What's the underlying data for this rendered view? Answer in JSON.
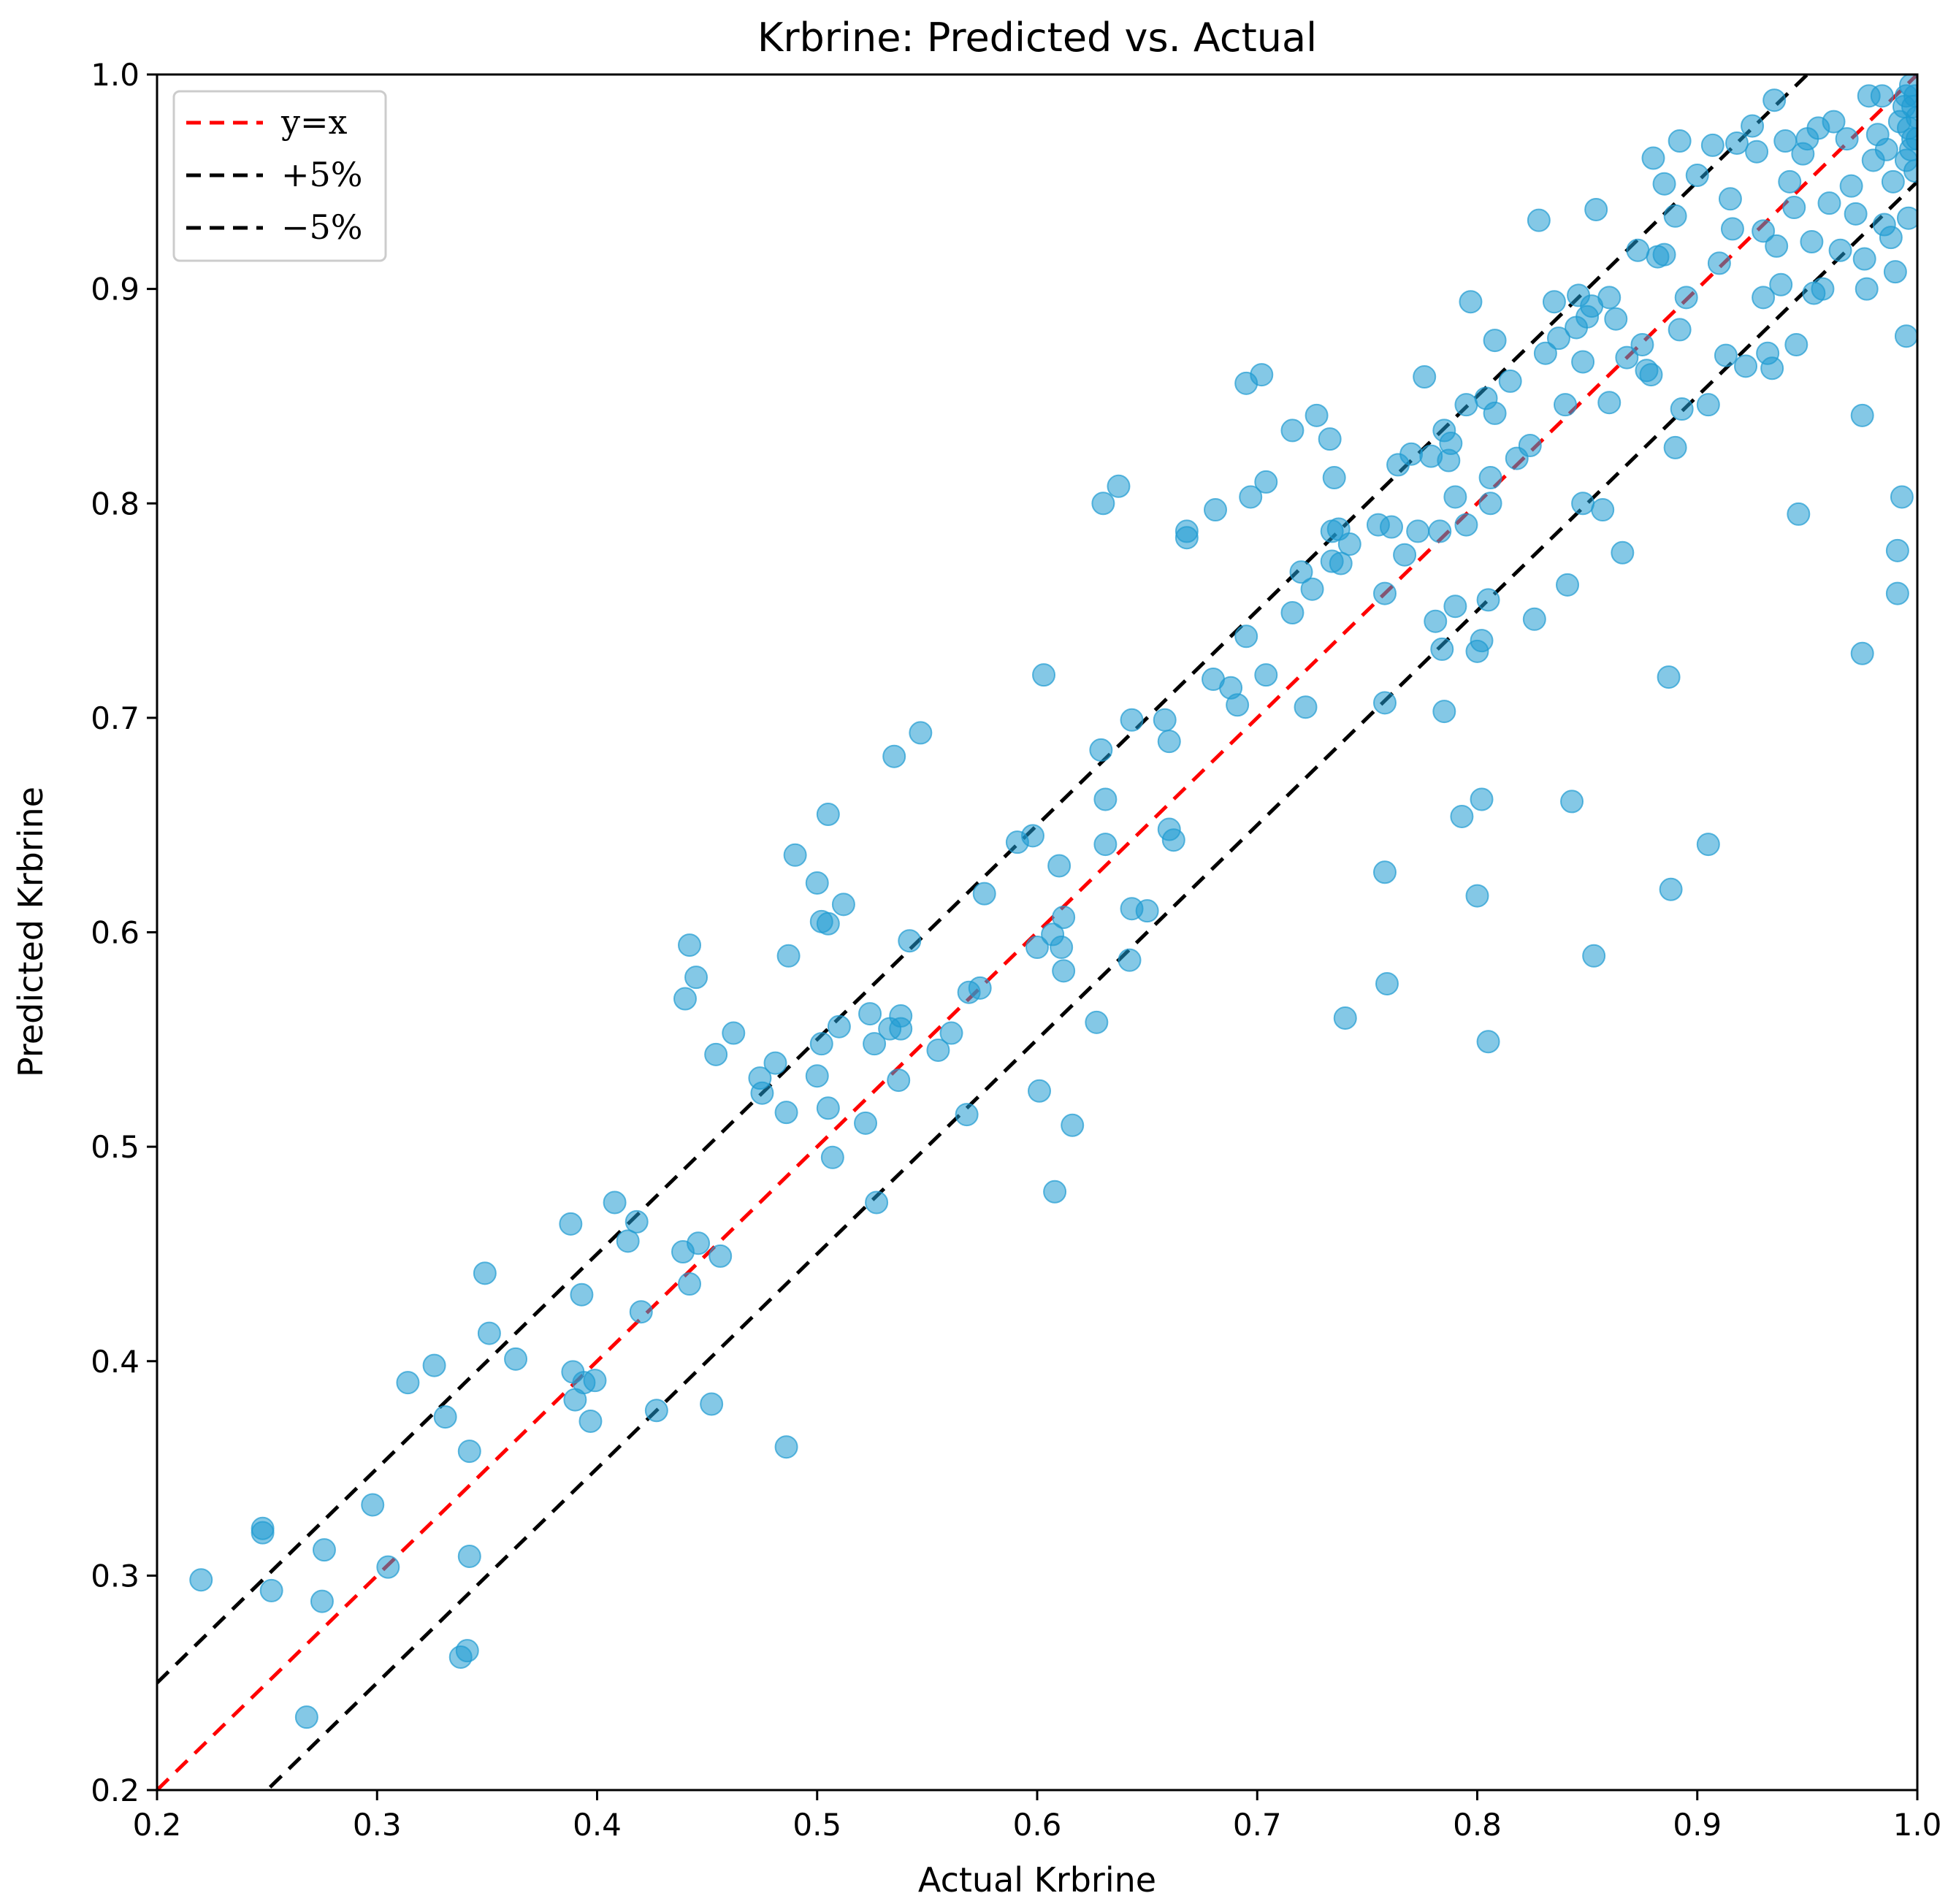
{
  "chart_data": {
    "type": "scatter",
    "title": "Krbrine: Predicted vs. Actual",
    "xlabel": "Actual Krbrine",
    "ylabel": "Predicted Krbrine",
    "xlim": [
      0.2,
      1.0
    ],
    "ylim": [
      0.2,
      1.0
    ],
    "xticks": [
      "0.2",
      "0.3",
      "0.4",
      "0.5",
      "0.6",
      "0.7",
      "0.8",
      "0.9",
      "1.0"
    ],
    "yticks": [
      "0.2",
      "0.3",
      "0.4",
      "0.5",
      "0.6",
      "0.7",
      "0.8",
      "0.9",
      "1.0"
    ],
    "grid": false,
    "legend_position": "top-left",
    "point_color": "#1f9bd1",
    "lines": [
      {
        "name": "y=x",
        "color": "#ff0000",
        "offset": 0.0,
        "dashed": true
      },
      {
        "name": "+5%",
        "color": "#000000",
        "offset": 0.05,
        "dashed": true
      },
      {
        "name": "−5%",
        "color": "#000000",
        "offset": -0.05,
        "dashed": true
      }
    ],
    "points": [
      [
        0.22,
        0.298
      ],
      [
        0.248,
        0.32
      ],
      [
        0.248,
        0.322
      ],
      [
        0.252,
        0.293
      ],
      [
        0.275,
        0.288
      ],
      [
        0.276,
        0.312
      ],
      [
        0.268,
        0.234
      ],
      [
        0.298,
        0.333
      ],
      [
        0.305,
        0.304
      ],
      [
        0.314,
        0.39
      ],
      [
        0.326,
        0.398
      ],
      [
        0.331,
        0.374
      ],
      [
        0.342,
        0.358
      ],
      [
        0.342,
        0.309
      ],
      [
        0.338,
        0.262
      ],
      [
        0.341,
        0.265
      ],
      [
        0.349,
        0.441
      ],
      [
        0.351,
        0.413
      ],
      [
        0.363,
        0.401
      ],
      [
        0.388,
        0.464
      ],
      [
        0.389,
        0.395
      ],
      [
        0.39,
        0.382
      ],
      [
        0.393,
        0.431
      ],
      [
        0.394,
        0.39
      ],
      [
        0.397,
        0.372
      ],
      [
        0.399,
        0.391
      ],
      [
        0.408,
        0.474
      ],
      [
        0.414,
        0.456
      ],
      [
        0.418,
        0.465
      ],
      [
        0.42,
        0.423
      ],
      [
        0.427,
        0.377
      ],
      [
        0.439,
        0.451
      ],
      [
        0.44,
        0.569
      ],
      [
        0.442,
        0.436
      ],
      [
        0.442,
        0.594
      ],
      [
        0.445,
        0.579
      ],
      [
        0.446,
        0.455
      ],
      [
        0.452,
        0.38
      ],
      [
        0.454,
        0.543
      ],
      [
        0.456,
        0.449
      ],
      [
        0.462,
        0.553
      ],
      [
        0.474,
        0.532
      ],
      [
        0.475,
        0.525
      ],
      [
        0.481,
        0.539
      ],
      [
        0.486,
        0.36
      ],
      [
        0.486,
        0.516
      ],
      [
        0.487,
        0.589
      ],
      [
        0.49,
        0.636
      ],
      [
        0.5,
        0.623
      ],
      [
        0.5,
        0.533
      ],
      [
        0.502,
        0.605
      ],
      [
        0.502,
        0.548
      ],
      [
        0.505,
        0.604
      ],
      [
        0.505,
        0.655
      ],
      [
        0.505,
        0.518
      ],
      [
        0.507,
        0.495
      ],
      [
        0.51,
        0.556
      ],
      [
        0.512,
        0.613
      ],
      [
        0.522,
        0.511
      ],
      [
        0.524,
        0.562
      ],
      [
        0.526,
        0.548
      ],
      [
        0.527,
        0.474
      ],
      [
        0.533,
        0.555
      ],
      [
        0.535,
        0.682
      ],
      [
        0.537,
        0.531
      ],
      [
        0.538,
        0.561
      ],
      [
        0.538,
        0.555
      ],
      [
        0.542,
        0.596
      ],
      [
        0.547,
        0.693
      ],
      [
        0.555,
        0.545
      ],
      [
        0.561,
        0.553
      ],
      [
        0.568,
        0.515
      ],
      [
        0.569,
        0.572
      ],
      [
        0.574,
        0.574
      ],
      [
        0.576,
        0.618
      ],
      [
        0.591,
        0.642
      ],
      [
        0.598,
        0.645
      ],
      [
        0.6,
        0.593
      ],
      [
        0.601,
        0.526
      ],
      [
        0.603,
        0.72
      ],
      [
        0.607,
        0.599
      ],
      [
        0.608,
        0.479
      ],
      [
        0.61,
        0.631
      ],
      [
        0.611,
        0.593
      ],
      [
        0.612,
        0.607
      ],
      [
        0.612,
        0.582
      ],
      [
        0.616,
        0.51
      ],
      [
        0.627,
        0.558
      ],
      [
        0.629,
        0.685
      ],
      [
        0.63,
        0.8
      ],
      [
        0.631,
        0.641
      ],
      [
        0.631,
        0.662
      ],
      [
        0.637,
        0.808
      ],
      [
        0.642,
        0.587
      ],
      [
        0.643,
        0.611
      ],
      [
        0.643,
        0.699
      ],
      [
        0.65,
        0.61
      ],
      [
        0.658,
        0.699
      ],
      [
        0.66,
        0.689
      ],
      [
        0.66,
        0.648
      ],
      [
        0.662,
        0.643
      ],
      [
        0.668,
        0.787
      ],
      [
        0.668,
        0.784
      ],
      [
        0.681,
        0.797
      ],
      [
        0.68,
        0.718
      ],
      [
        0.688,
        0.714
      ],
      [
        0.691,
        0.706
      ],
      [
        0.695,
        0.738
      ],
      [
        0.695,
        0.856
      ],
      [
        0.697,
        0.803
      ],
      [
        0.702,
        0.86
      ],
      [
        0.704,
        0.72
      ],
      [
        0.704,
        0.81
      ],
      [
        0.716,
        0.749
      ],
      [
        0.716,
        0.834
      ],
      [
        0.72,
        0.768
      ],
      [
        0.722,
        0.705
      ],
      [
        0.725,
        0.76
      ],
      [
        0.727,
        0.841
      ],
      [
        0.733,
        0.83
      ],
      [
        0.734,
        0.773
      ],
      [
        0.734,
        0.787
      ],
      [
        0.735,
        0.812
      ],
      [
        0.737,
        0.788
      ],
      [
        0.738,
        0.772
      ],
      [
        0.74,
        0.56
      ],
      [
        0.742,
        0.781
      ],
      [
        0.755,
        0.79
      ],
      [
        0.758,
        0.707
      ],
      [
        0.758,
        0.758
      ],
      [
        0.759,
        0.576
      ],
      [
        0.758,
        0.628
      ],
      [
        0.761,
        0.789
      ],
      [
        0.764,
        0.818
      ],
      [
        0.767,
        0.776
      ],
      [
        0.77,
        0.823
      ],
      [
        0.773,
        0.787
      ],
      [
        0.776,
        0.859
      ],
      [
        0.779,
        0.822
      ],
      [
        0.781,
        0.745
      ],
      [
        0.783,
        0.787
      ],
      [
        0.784,
        0.732
      ],
      [
        0.785,
        0.703
      ],
      [
        0.785,
        0.834
      ],
      [
        0.787,
        0.82
      ],
      [
        0.788,
        0.828
      ],
      [
        0.79,
        0.803
      ],
      [
        0.79,
        0.752
      ],
      [
        0.793,
        0.654
      ],
      [
        0.795,
        0.79
      ],
      [
        0.795,
        0.846
      ],
      [
        0.797,
        0.894
      ],
      [
        0.8,
        0.617
      ],
      [
        0.8,
        0.731
      ],
      [
        0.802,
        0.736
      ],
      [
        0.802,
        0.662
      ],
      [
        0.804,
        0.849
      ],
      [
        0.805,
        0.755
      ],
      [
        0.805,
        0.549
      ],
      [
        0.806,
        0.812
      ],
      [
        0.806,
        0.8
      ],
      [
        0.808,
        0.876
      ],
      [
        0.808,
        0.842
      ],
      [
        0.815,
        0.857
      ],
      [
        0.818,
        0.821
      ],
      [
        0.824,
        0.827
      ],
      [
        0.826,
        0.746
      ],
      [
        0.828,
        0.932
      ],
      [
        0.831,
        0.87
      ],
      [
        0.835,
        0.894
      ],
      [
        0.837,
        0.877
      ],
      [
        0.84,
        0.846
      ],
      [
        0.841,
        0.762
      ],
      [
        0.843,
        0.661
      ],
      [
        0.845,
        0.882
      ],
      [
        0.846,
        0.897
      ],
      [
        0.848,
        0.8
      ],
      [
        0.848,
        0.866
      ],
      [
        0.85,
        0.887
      ],
      [
        0.852,
        0.892
      ],
      [
        0.853,
        0.589
      ],
      [
        0.854,
        0.937
      ],
      [
        0.857,
        0.797
      ],
      [
        0.86,
        0.847
      ],
      [
        0.86,
        0.896
      ],
      [
        0.863,
        0.886
      ],
      [
        0.866,
        0.777
      ],
      [
        0.868,
        0.868
      ],
      [
        0.873,
        0.918
      ],
      [
        0.875,
        0.874
      ],
      [
        0.877,
        0.862
      ],
      [
        0.879,
        0.86
      ],
      [
        0.88,
        0.961
      ],
      [
        0.882,
        0.915
      ],
      [
        0.885,
        0.949
      ],
      [
        0.885,
        0.916
      ],
      [
        0.887,
        0.719
      ],
      [
        0.888,
        0.62
      ],
      [
        0.89,
        0.934
      ],
      [
        0.89,
        0.826
      ],
      [
        0.892,
        0.969
      ],
      [
        0.892,
        0.881
      ],
      [
        0.893,
        0.844
      ],
      [
        0.895,
        0.896
      ],
      [
        0.9,
        0.953
      ],
      [
        0.905,
        0.641
      ],
      [
        0.905,
        0.846
      ],
      [
        0.907,
        0.967
      ],
      [
        0.91,
        0.912
      ],
      [
        0.913,
        0.869
      ],
      [
        0.915,
        0.942
      ],
      [
        0.916,
        0.928
      ],
      [
        0.918,
        0.968
      ],
      [
        0.922,
        0.864
      ],
      [
        0.925,
        0.976
      ],
      [
        0.927,
        0.964
      ],
      [
        0.93,
        0.896
      ],
      [
        0.93,
        0.927
      ],
      [
        0.932,
        0.87
      ],
      [
        0.934,
        0.863
      ],
      [
        0.935,
        0.988
      ],
      [
        0.936,
        0.92
      ],
      [
        0.938,
        0.902
      ],
      [
        0.94,
        0.969
      ],
      [
        0.942,
        0.95
      ],
      [
        0.944,
        0.938
      ],
      [
        0.945,
        0.874
      ],
      [
        0.946,
        0.795
      ],
      [
        0.948,
        0.963
      ],
      [
        0.95,
        0.97
      ],
      [
        0.952,
        0.922
      ],
      [
        0.953,
        0.898
      ],
      [
        0.955,
        0.975
      ],
      [
        0.957,
        0.9
      ],
      [
        0.96,
        0.94
      ],
      [
        0.962,
        0.978
      ],
      [
        0.965,
        0.918
      ],
      [
        0.968,
        0.97
      ],
      [
        0.97,
        0.948
      ],
      [
        0.972,
        0.935
      ],
      [
        0.975,
        0.73
      ],
      [
        0.975,
        0.841
      ],
      [
        0.976,
        0.914
      ],
      [
        0.977,
        0.9
      ],
      [
        0.978,
        0.99
      ],
      [
        0.98,
        0.96
      ],
      [
        0.982,
        0.972
      ],
      [
        0.984,
        0.99
      ],
      [
        0.985,
        0.93
      ],
      [
        0.986,
        0.965
      ],
      [
        0.988,
        0.924
      ],
      [
        0.989,
        0.95
      ],
      [
        0.99,
        0.908
      ],
      [
        0.991,
        0.758
      ],
      [
        0.991,
        0.778
      ],
      [
        0.992,
        0.978
      ],
      [
        0.993,
        0.803
      ],
      [
        0.994,
        0.985
      ],
      [
        0.995,
        0.96
      ],
      [
        0.995,
        0.878
      ],
      [
        0.996,
        0.933
      ],
      [
        0.997,
        0.995
      ],
      [
        0.998,
        0.97
      ],
      [
        0.999,
        0.99
      ],
      [
        0.999,
        0.955
      ],
      [
        1.0,
        0.98
      ],
      [
        1.0,
        0.97
      ],
      [
        0.996,
        0.975
      ],
      [
        0.997,
        0.965
      ],
      [
        0.998,
        0.985
      ],
      [
        0.995,
        0.99
      ]
    ]
  }
}
